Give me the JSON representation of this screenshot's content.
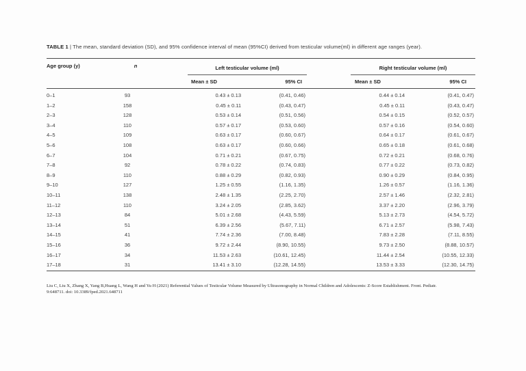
{
  "table": {
    "title_label": "TABLE 1",
    "title_separator": "|",
    "title_text": "The mean, standard deviation (SD), and 95% confidence interval of mean (95%CI) derived from testicular volume(ml) in different age ranges (year).",
    "columns": {
      "age_group": "Age group (y)",
      "n": "n",
      "left_group": "Left testicular volume (ml)",
      "right_group": "Right testicular volume (ml)",
      "mean_sd": "Mean ± SD",
      "ci": "95% CI"
    },
    "rows": [
      {
        "age": "0–1",
        "n": "93",
        "left_mean_sd": "0.43 ± 0.13",
        "left_ci": "(0.41, 0.46)",
        "right_mean_sd": "0.44 ± 0.14",
        "right_ci": "(0.41, 0.47)"
      },
      {
        "age": "1–2",
        "n": "158",
        "left_mean_sd": "0.45 ± 0.11",
        "left_ci": "(0.43, 0.47)",
        "right_mean_sd": "0.45 ± 0.11",
        "right_ci": "(0.43, 0.47)"
      },
      {
        "age": "2–3",
        "n": "128",
        "left_mean_sd": "0.53 ± 0.14",
        "left_ci": "(0.51, 0.56)",
        "right_mean_sd": "0.54 ± 0.15",
        "right_ci": "(0.52, 0.57)"
      },
      {
        "age": "3–4",
        "n": "110",
        "left_mean_sd": "0.57 ± 0.17",
        "left_ci": "(0.53, 0.60)",
        "right_mean_sd": "0.57 ± 0.16",
        "right_ci": "(0.54, 0.60)"
      },
      {
        "age": "4–5",
        "n": "109",
        "left_mean_sd": "0.63 ± 0.17",
        "left_ci": "(0.60, 0.67)",
        "right_mean_sd": "0.64 ± 0.17",
        "right_ci": "(0.61, 0.67)"
      },
      {
        "age": "5–6",
        "n": "108",
        "left_mean_sd": "0.63 ± 0.17",
        "left_ci": "(0.60, 0.66)",
        "right_mean_sd": "0.65 ± 0.18",
        "right_ci": "(0.61, 0.68)"
      },
      {
        "age": "6–7",
        "n": "104",
        "left_mean_sd": "0.71 ± 0.21",
        "left_ci": "(0.67, 0.75)",
        "right_mean_sd": "0.72 ± 0.21",
        "right_ci": "(0.68, 0.76)"
      },
      {
        "age": "7–8",
        "n": "92",
        "left_mean_sd": "0.78 ± 0.22",
        "left_ci": "(0.74, 0.83)",
        "right_mean_sd": "0.77 ± 0.22",
        "right_ci": "(0.73, 0.82)"
      },
      {
        "age": "8–9",
        "n": "110",
        "left_mean_sd": "0.88 ± 0.29",
        "left_ci": "(0.82, 0.93)",
        "right_mean_sd": "0.90 ± 0.29",
        "right_ci": "(0.84, 0.95)"
      },
      {
        "age": "9–10",
        "n": "127",
        "left_mean_sd": "1.25 ± 0.55",
        "left_ci": "(1.16, 1.35)",
        "right_mean_sd": "1.26 ± 0.57",
        "right_ci": "(1.16, 1.36)"
      },
      {
        "age": "10–11",
        "n": "138",
        "left_mean_sd": "2.48 ± 1.35",
        "left_ci": "(2.25, 2.70)",
        "right_mean_sd": "2.57 ± 1.46",
        "right_ci": "(2.32, 2.81)"
      },
      {
        "age": "11–12",
        "n": "110",
        "left_mean_sd": "3.24 ± 2.05",
        "left_ci": "(2.85, 3.62)",
        "right_mean_sd": "3.37 ± 2.20",
        "right_ci": "(2.96, 3.79)"
      },
      {
        "age": "12–13",
        "n": "84",
        "left_mean_sd": "5.01 ± 2.68",
        "left_ci": "(4.43, 5.59)",
        "right_mean_sd": "5.13 ± 2.73",
        "right_ci": "(4.54, 5.72)"
      },
      {
        "age": "13–14",
        "n": "51",
        "left_mean_sd": "6.39 ± 2.56",
        "left_ci": "(5.67, 7.11)",
        "right_mean_sd": "6.71 ± 2.57",
        "right_ci": "(5.98, 7.43)"
      },
      {
        "age": "14–15",
        "n": "41",
        "left_mean_sd": "7.74 ± 2.36",
        "left_ci": "(7.00, 8.48)",
        "right_mean_sd": "7.83 ± 2.28",
        "right_ci": "(7.11, 8.55)"
      },
      {
        "age": "15–16",
        "n": "36",
        "left_mean_sd": "9.72 ± 2.44",
        "left_ci": "(8.90, 10.55)",
        "right_mean_sd": "9.73 ± 2.50",
        "right_ci": "(8.88, 10.57)"
      },
      {
        "age": "16–17",
        "n": "34",
        "left_mean_sd": "11.53 ± 2.63",
        "left_ci": "(10.61, 12.45)",
        "right_mean_sd": "11.44 ± 2.54",
        "right_ci": "(10.55, 12.33)"
      },
      {
        "age": "17–18",
        "n": "31",
        "left_mean_sd": "13.41 ± 3.10",
        "left_ci": "(12.28, 14.55)",
        "right_mean_sd": "13.53 ± 3.33",
        "right_ci": "(12.30, 14.75)"
      }
    ]
  },
  "footer": {
    "citation_line1": "Liu C, Liu X, Zhang X, Yang B,Huang L, Wang H and Yu H (2021) Referential Values of Testicular Volume Measured by Ultrasonography in Normal Children and Adolescents: Z-Score Establishment. Front. Pediatr.",
    "citation_line2": "9:648711. doi: 10.3389/fped.2021.648711"
  }
}
